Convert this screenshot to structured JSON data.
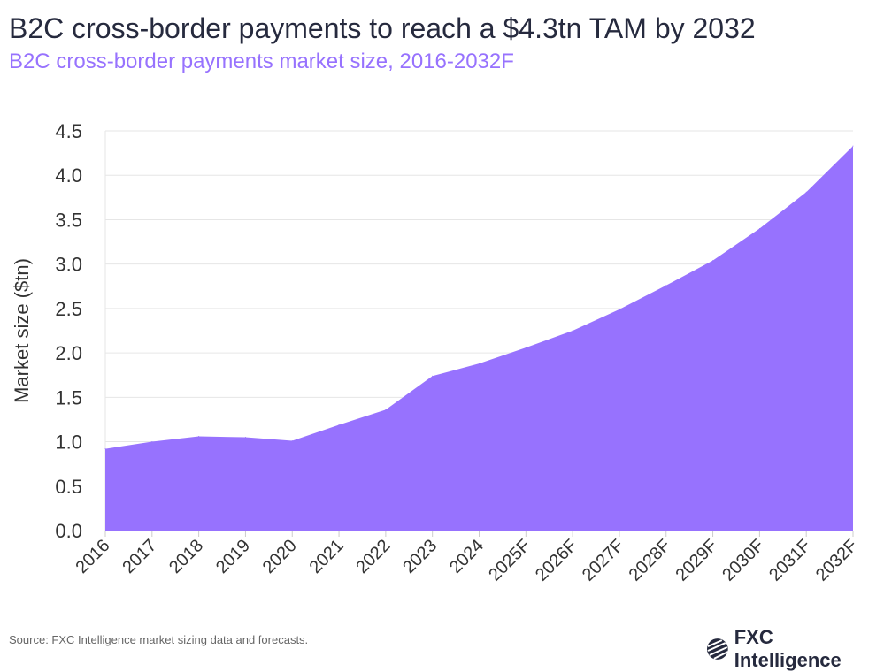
{
  "title": "B2C cross-border payments to reach a $4.3tn TAM by 2032",
  "subtitle": "B2C cross-border payments market size, 2016-2032F",
  "source": "Source: FXC Intelligence market sizing data and forecasts.",
  "logo_text": "FXC Intelligence",
  "colors": {
    "area": "#9772fe",
    "title": "#262a3e",
    "subtitle": "#9772fe",
    "grid": "#e6e6e6"
  },
  "chart_data": {
    "type": "area",
    "title": "B2C cross-border payments market size, 2016-2032F",
    "xlabel": "",
    "ylabel": "Market size ($tn)",
    "ylim": [
      0,
      4.5
    ],
    "yticks": [
      "0.0",
      "0.5",
      "1.0",
      "1.5",
      "2.0",
      "2.5",
      "3.0",
      "3.5",
      "4.0",
      "4.5"
    ],
    "grid": true,
    "categories": [
      "2016",
      "2017",
      "2018",
      "2019",
      "2020",
      "2021",
      "2022",
      "2023",
      "2024",
      "2025F",
      "2026F",
      "2027F",
      "2028F",
      "2029F",
      "2030F",
      "2031F",
      "2032F"
    ],
    "values": [
      0.92,
      1.0,
      1.06,
      1.05,
      1.01,
      1.19,
      1.36,
      1.74,
      1.88,
      2.06,
      2.25,
      2.49,
      2.76,
      3.04,
      3.4,
      3.81,
      4.33
    ]
  }
}
